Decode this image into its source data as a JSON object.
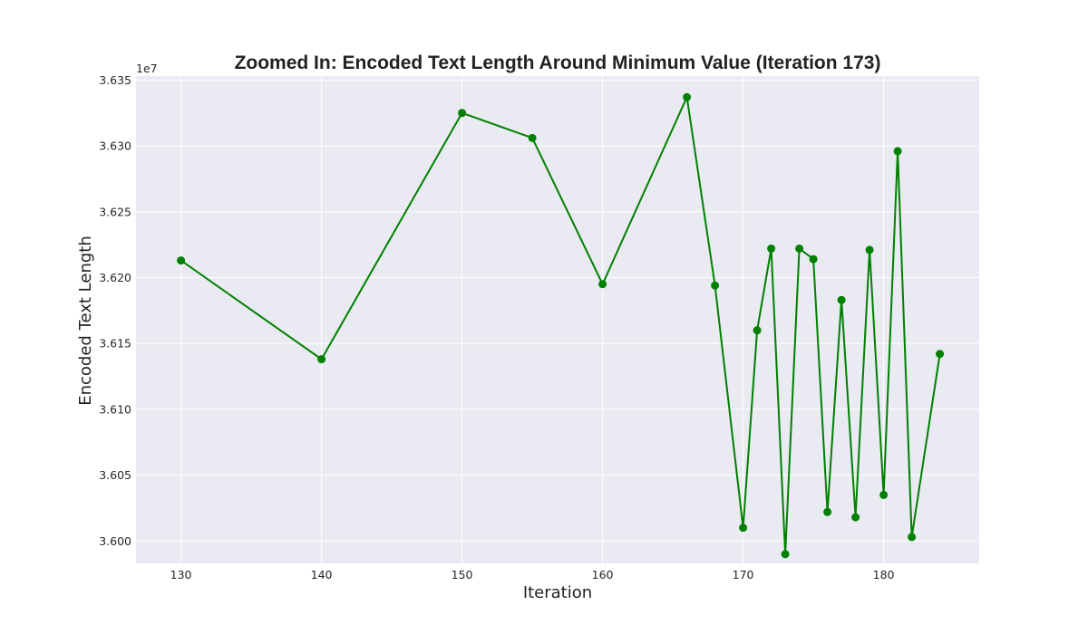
{
  "chart_data": {
    "type": "line",
    "title": "Zoomed In: Encoded Text Length Around Minimum Value (Iteration 173)",
    "xlabel": "Iteration",
    "ylabel": "Encoded Text Length",
    "y_offset_label": "1e7",
    "x_ticks": [
      130,
      140,
      150,
      160,
      170,
      180
    ],
    "y_ticks": [
      3.6,
      3.605,
      3.61,
      3.615,
      3.62,
      3.625,
      3.63,
      3.635
    ],
    "y_tick_labels": [
      "3.600",
      "3.605",
      "3.610",
      "3.615",
      "3.620",
      "3.625",
      "3.630",
      "3.635"
    ],
    "xlim": [
      126.8,
      186.8
    ],
    "ylim": [
      3.5983,
      3.6353
    ],
    "grid": true,
    "colors": {
      "line": "#008000",
      "background": "#eaeaf2",
      "grid": "#ffffff"
    },
    "series": [
      {
        "x": [
          130,
          140,
          150,
          155,
          160,
          166,
          168,
          170,
          171,
          172,
          173,
          174,
          175,
          176,
          177,
          178,
          179,
          180,
          181,
          182,
          184
        ],
        "y": [
          3.6213,
          3.6138,
          3.6325,
          3.6306,
          3.6195,
          3.6337,
          3.6194,
          3.601,
          3.616,
          3.6222,
          3.599,
          3.6222,
          3.6214,
          3.6022,
          3.6183,
          3.6018,
          3.6221,
          3.6035,
          3.6296,
          3.6003,
          3.6142
        ]
      }
    ]
  }
}
